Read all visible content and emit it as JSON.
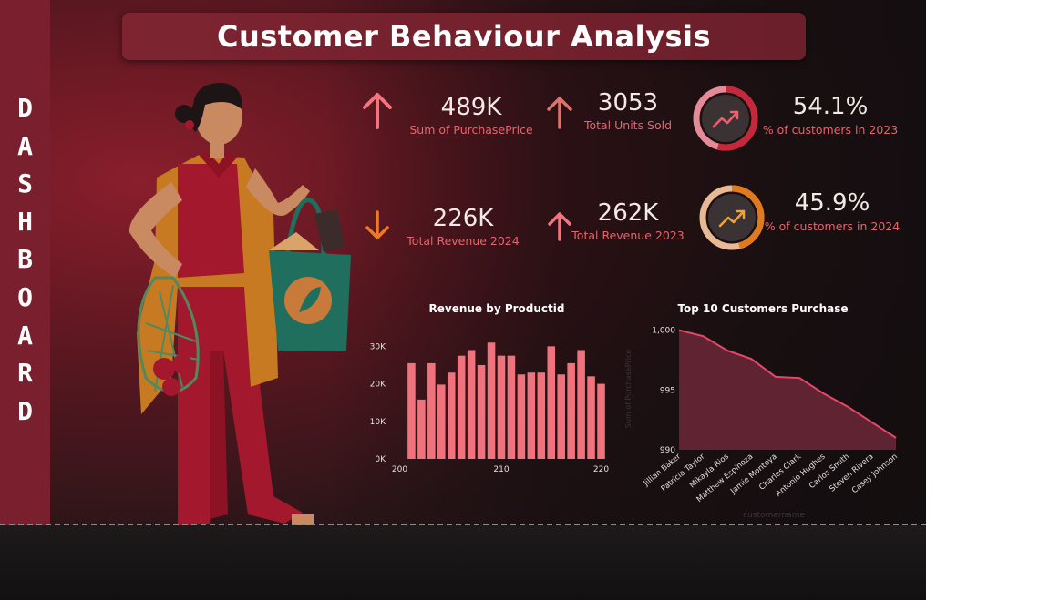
{
  "title": "Customer Behaviour Analysis",
  "side_label": [
    "D",
    "A",
    "S",
    "H",
    "B",
    "O",
    "A",
    "R",
    "D"
  ],
  "kpis": [
    {
      "value": "489K",
      "label": "Sum of PurchasePrice",
      "trend": "up"
    },
    {
      "value": "3053",
      "label": "Total Units Sold",
      "trend": "up"
    },
    {
      "value": "226K",
      "label": "Total Revenue 2024",
      "trend": "down"
    },
    {
      "value": "262K",
      "label": "Total Revenue 2023",
      "trend": "up"
    }
  ],
  "rings": [
    {
      "value": "54.1%",
      "label": "% of customers in 2023",
      "fraction": 0.541,
      "color": "#c4283a",
      "icon": "trending-up-icon"
    },
    {
      "value": "45.9%",
      "label": "% of customers in 2024",
      "fraction": 0.459,
      "color": "#e07a1e",
      "icon": "trending-up-icon"
    }
  ],
  "colors": {
    "accent": "#e3656e",
    "bar": "#f0727d",
    "line": "#e8466a",
    "area": "#6c2738"
  },
  "chart_data": [
    {
      "type": "bar",
      "title": "Revenue by Productid",
      "x": [
        201,
        202,
        203,
        204,
        205,
        206,
        207,
        208,
        209,
        210,
        211,
        212,
        213,
        214,
        215,
        216,
        217,
        218,
        219,
        220
      ],
      "values": [
        25500,
        15800,
        25500,
        19800,
        23000,
        27500,
        29000,
        25000,
        31000,
        27500,
        27500,
        22500,
        23000,
        23000,
        30000,
        22500,
        25500,
        29000,
        22000,
        20000
      ],
      "xticks": [
        "200",
        "210",
        "220"
      ],
      "xlim": [
        200,
        220
      ],
      "yticks": [
        "0K",
        "10K",
        "20K",
        "30K"
      ],
      "ylim": [
        0,
        33000
      ]
    },
    {
      "type": "area",
      "title": "Top 10 Customers Purchase",
      "categories": [
        "Jillian Baker",
        "Patricia Taylor",
        "Mikayla Rios",
        "Matthew Espinoza",
        "Jamie Montoya",
        "Charles Clark",
        "Antonio Hughes",
        "Carlos Smith",
        "Steven Rivera",
        "Casey Johnson"
      ],
      "values": [
        1000,
        999.5,
        998.3,
        997.6,
        996.1,
        996.0,
        994.7,
        993.6,
        992.3,
        991.0
      ],
      "yticks": [
        "990",
        "995",
        "1,000"
      ],
      "ylim": [
        990,
        1000.2
      ],
      "xlabel": "customername",
      "ylabel": "Sum of PurchasePrice"
    }
  ]
}
